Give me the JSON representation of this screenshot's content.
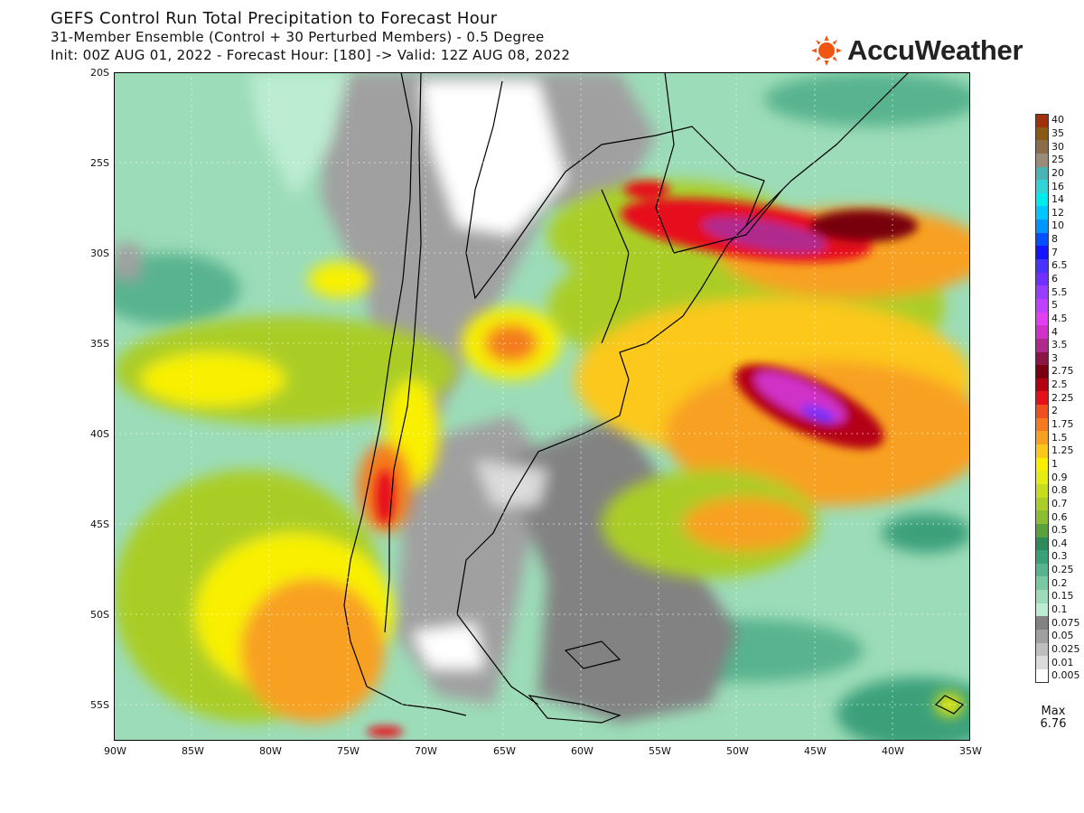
{
  "title": {
    "line1": "GEFS Control Run Total Precipitation to Forecast Hour",
    "line2": "31-Member Ensemble (Control + 30 Perturbed Members) - 0.5 Degree",
    "line3": "Init: 00Z AUG 01, 2022 - Forecast Hour: [180] -> Valid: 12Z AUG 08, 2022"
  },
  "brand": {
    "name": "AccuWeather",
    "icon": "sun-logo-icon",
    "color": "#f05514"
  },
  "axes": {
    "lat_labels": [
      "20S",
      "25S",
      "30S",
      "35S",
      "40S",
      "45S",
      "50S",
      "55S"
    ],
    "lon_labels": [
      "90W",
      "85W",
      "80W",
      "75W",
      "70W",
      "65W",
      "60W",
      "55W",
      "50W",
      "45W",
      "40W",
      "35W"
    ],
    "lat_range": [
      -57,
      -20
    ],
    "lon_range": [
      -90,
      -35
    ],
    "grid": "dotted"
  },
  "legend": {
    "entries": [
      {
        "label": "40",
        "color": "#a0300a"
      },
      {
        "label": "35",
        "color": "#8a5a14"
      },
      {
        "label": "30",
        "color": "#8a6e4a"
      },
      {
        "label": "25",
        "color": "#9a8c78"
      },
      {
        "label": "20",
        "color": "#48b4b4"
      },
      {
        "label": "16",
        "color": "#30d4d4"
      },
      {
        "label": "14",
        "color": "#00ecec"
      },
      {
        "label": "12",
        "color": "#00c8ff"
      },
      {
        "label": "10",
        "color": "#0096ff"
      },
      {
        "label": "8",
        "color": "#0050ff"
      },
      {
        "label": "7",
        "color": "#1414ff"
      },
      {
        "label": "6.5",
        "color": "#4a32ff"
      },
      {
        "label": "6",
        "color": "#7030ff"
      },
      {
        "label": "5.5",
        "color": "#9a3cff"
      },
      {
        "label": "5",
        "color": "#c040ff"
      },
      {
        "label": "4.5",
        "color": "#e040f0"
      },
      {
        "label": "4",
        "color": "#d030c8"
      },
      {
        "label": "3.5",
        "color": "#b02a8e"
      },
      {
        "label": "3",
        "color": "#8c1446"
      },
      {
        "label": "2.75",
        "color": "#780010"
      },
      {
        "label": "2.5",
        "color": "#b40012"
      },
      {
        "label": "2.25",
        "color": "#e6101a"
      },
      {
        "label": "2",
        "color": "#f0501e"
      },
      {
        "label": "1.75",
        "color": "#f47a1e"
      },
      {
        "label": "1.5",
        "color": "#f8a020"
      },
      {
        "label": "1.25",
        "color": "#fcc81c"
      },
      {
        "label": "1",
        "color": "#f8f000"
      },
      {
        "label": "0.9",
        "color": "#e4ec14"
      },
      {
        "label": "0.8",
        "color": "#c8dc1e"
      },
      {
        "label": "0.7",
        "color": "#aacd28"
      },
      {
        "label": "0.6",
        "color": "#8cbe32"
      },
      {
        "label": "0.5",
        "color": "#5aa03c"
      },
      {
        "label": "0.4",
        "color": "#2d8a5a"
      },
      {
        "label": "0.3",
        "color": "#3aa07a"
      },
      {
        "label": "0.25",
        "color": "#58b48e"
      },
      {
        "label": "0.2",
        "color": "#78c8a2"
      },
      {
        "label": "0.15",
        "color": "#9cdcb8"
      },
      {
        "label": "0.1",
        "color": "#bcecd2"
      },
      {
        "label": "0.075",
        "color": "#828282"
      },
      {
        "label": "0.05",
        "color": "#a0a0a0"
      },
      {
        "label": "0.025",
        "color": "#bebebe"
      },
      {
        "label": "0.01",
        "color": "#dcdcdc"
      },
      {
        "label": "0.005",
        "color": "#ffffff"
      }
    ]
  },
  "max": {
    "label": "Max",
    "value": "6.76"
  }
}
